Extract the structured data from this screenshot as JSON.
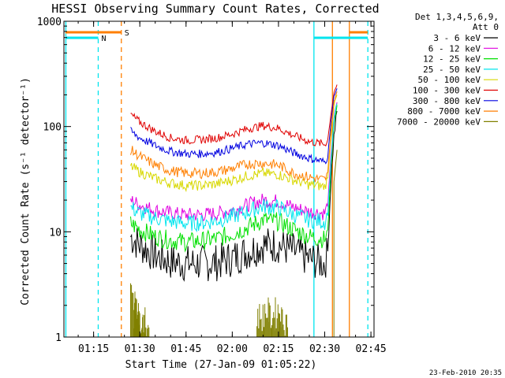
{
  "chart_data": {
    "type": "line",
    "title": "HESSI Observing Summary Count Rates, Corrected",
    "xlabel": "Start Time (27-Jan-09 01:05:22)",
    "ylabel": "Corrected Count Rate (s⁻¹ detector⁻¹)",
    "y_scale": "log",
    "ylim": [
      1,
      1000
    ],
    "xlim": [
      "01:05:22",
      "02:46:00"
    ],
    "x_ticks": [
      "01:15",
      "01:30",
      "01:45",
      "02:00",
      "02:15",
      "02:30",
      "02:45"
    ],
    "y_ticks": [
      "1",
      "10",
      "100",
      "1000"
    ],
    "legend_header": [
      "Det 1,3,4,5,6,9,",
      "Att 0"
    ],
    "legend_position": "right",
    "timestamp": "23-Feb-2010 20:35",
    "markers": {
      "saa_label": "S",
      "night_label": "N",
      "saa_color": "#ff7f00",
      "night_color": "#00e5ee"
    },
    "series": [
      {
        "name": "3 - 6 keV",
        "color": "#000000",
        "x": [
          "01:27",
          "01:30",
          "01:35",
          "01:40",
          "01:45",
          "01:50",
          "01:55",
          "02:00",
          "02:05",
          "02:10",
          "02:15",
          "02:20",
          "02:25",
          "02:30",
          "02:31",
          "02:32",
          "02:33",
          "02:34"
        ],
        "y": [
          9.0,
          7.5,
          6.0,
          5.2,
          5.0,
          5.0,
          5.1,
          5.6,
          6.5,
          7.5,
          7.5,
          6.5,
          5.5,
          5.0,
          6.5,
          30,
          80,
          140
        ]
      },
      {
        "name": "6 - 12 keV",
        "color": "#e000e0",
        "x": [
          "01:27",
          "01:30",
          "01:35",
          "01:40",
          "01:45",
          "01:50",
          "01:55",
          "02:00",
          "02:05",
          "02:10",
          "02:15",
          "02:20",
          "02:25",
          "02:30",
          "02:31",
          "02:32",
          "02:33",
          "02:34"
        ],
        "y": [
          20,
          18,
          16,
          15,
          14.5,
          14.5,
          15,
          16,
          18,
          20,
          19.5,
          17,
          15.5,
          15,
          18,
          50,
          120,
          170
        ]
      },
      {
        "name": "12 - 25 keV",
        "color": "#00e000",
        "x": [
          "01:27",
          "01:30",
          "01:35",
          "01:40",
          "01:45",
          "01:50",
          "01:55",
          "02:00",
          "02:05",
          "02:10",
          "02:15",
          "02:20",
          "02:25",
          "02:30",
          "02:31",
          "02:32",
          "02:33",
          "02:34"
        ],
        "y": [
          12,
          10.5,
          9,
          8.3,
          8,
          8.2,
          8.6,
          9.6,
          11,
          13,
          12.5,
          10.5,
          9,
          8.5,
          10,
          40,
          110,
          160
        ]
      },
      {
        "name": "25 - 50 keV",
        "color": "#00e5ee",
        "x": [
          "01:27",
          "01:30",
          "01:35",
          "01:40",
          "01:45",
          "01:50",
          "01:55",
          "02:00",
          "02:05",
          "02:10",
          "02:15",
          "02:20",
          "02:25",
          "02:30",
          "02:31",
          "02:32",
          "02:33",
          "02:34"
        ],
        "y": [
          17,
          15,
          13.5,
          12.6,
          12,
          12.2,
          12.8,
          14,
          15.5,
          17.5,
          17,
          14.5,
          13,
          12.5,
          15,
          45,
          115,
          165
        ]
      },
      {
        "name": "50 - 100 keV",
        "color": "#d8d800",
        "x": [
          "01:27",
          "01:30",
          "01:35",
          "01:40",
          "01:45",
          "01:50",
          "01:55",
          "02:00",
          "02:05",
          "02:10",
          "02:15",
          "02:20",
          "02:25",
          "02:30",
          "02:31",
          "02:32",
          "02:33",
          "02:34"
        ],
        "y": [
          42,
          37,
          32,
          29,
          27.5,
          27.5,
          28.5,
          31,
          34,
          36,
          35,
          31,
          28,
          27,
          32,
          80,
          160,
          200
        ]
      },
      {
        "name": "100 - 300 keV",
        "color": "#e00000",
        "x": [
          "01:27",
          "01:30",
          "01:35",
          "01:40",
          "01:45",
          "01:50",
          "01:55",
          "02:00",
          "02:05",
          "02:10",
          "02:15",
          "02:20",
          "02:25",
          "02:30",
          "02:31",
          "02:32",
          "02:33",
          "02:34"
        ],
        "y": [
          130,
          110,
          90,
          78,
          74,
          75,
          78,
          85,
          95,
          102,
          96,
          82,
          72,
          68,
          75,
          130,
          210,
          250
        ]
      },
      {
        "name": "300 - 800 keV",
        "color": "#0000e0",
        "x": [
          "01:27",
          "01:30",
          "01:35",
          "01:40",
          "01:45",
          "01:50",
          "01:55",
          "02:00",
          "02:05",
          "02:10",
          "02:15",
          "02:20",
          "02:25",
          "02:30",
          "02:31",
          "02:32",
          "02:33",
          "02:34"
        ],
        "y": [
          90,
          78,
          66,
          58,
          55,
          55,
          57,
          62,
          68,
          70,
          66,
          56,
          50,
          46,
          52,
          110,
          190,
          230
        ]
      },
      {
        "name": "800 - 7000 keV",
        "color": "#ff7f00",
        "x": [
          "01:27",
          "01:30",
          "01:35",
          "01:40",
          "01:45",
          "01:50",
          "01:55",
          "02:00",
          "02:05",
          "02:10",
          "02:15",
          "02:20",
          "02:25",
          "02:30",
          "02:31",
          "02:32",
          "02:33",
          "02:34"
        ],
        "y": [
          60,
          52,
          43,
          38,
          36,
          36,
          37,
          40,
          44,
          45,
          43,
          36,
          33,
          31,
          36,
          90,
          170,
          215
        ]
      },
      {
        "name": "7000 - 20000 keV",
        "color": "#808000",
        "x": [
          "01:27",
          "01:28",
          "01:29",
          "01:30",
          "01:31",
          "02:08",
          "02:10",
          "02:12",
          "02:14",
          "02:16",
          "02:33",
          "02:34"
        ],
        "y": [
          3.0,
          2.0,
          1.8,
          1.6,
          1.4,
          1.8,
          2.0,
          1.8,
          2.0,
          1.7,
          30,
          60
        ]
      }
    ]
  }
}
